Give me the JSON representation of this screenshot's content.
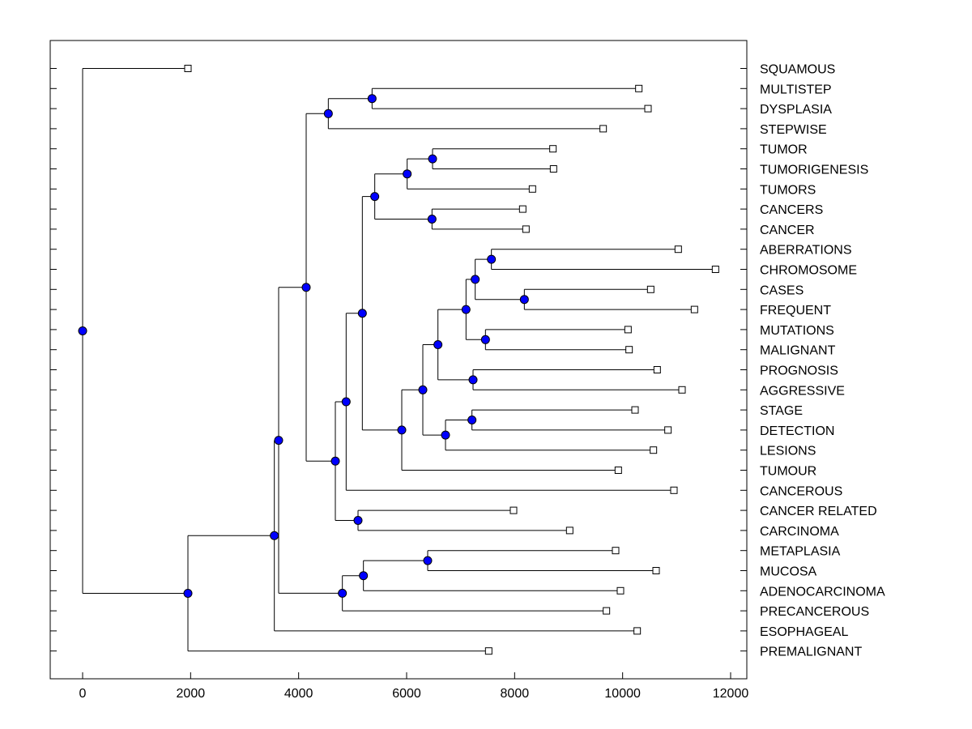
{
  "chart_data": {
    "type": "dendrogram",
    "title": "",
    "xlabel": "",
    "ylabel": "",
    "xlim": [
      -600,
      12300
    ],
    "x_ticks": [
      0,
      2000,
      4000,
      6000,
      8000,
      10000,
      12000
    ],
    "grid": false,
    "colors": {
      "node_fill": "#0000ff",
      "node_stroke": "#000000",
      "leaf_fill": "#ffffff",
      "line": "#000000"
    },
    "leaves": [
      {
        "label": "SQUAMOUS",
        "x": 1950
      },
      {
        "label": "MULTISTEP",
        "x": 10300
      },
      {
        "label": "DYSPLASIA",
        "x": 10470
      },
      {
        "label": "STEPWISE",
        "x": 9640
      },
      {
        "label": "TUMOR",
        "x": 8710
      },
      {
        "label": "TUMORIGENESIS",
        "x": 8720
      },
      {
        "label": "TUMORS",
        "x": 8330
      },
      {
        "label": "CANCERS",
        "x": 8150
      },
      {
        "label": "CANCER",
        "x": 8210
      },
      {
        "label": "ABERRATIONS",
        "x": 11030
      },
      {
        "label": "CHROMOSOME",
        "x": 11720
      },
      {
        "label": "CASES",
        "x": 10520
      },
      {
        "label": "FREQUENT",
        "x": 11330
      },
      {
        "label": "MUTATIONS",
        "x": 10100
      },
      {
        "label": "MALIGNANT",
        "x": 10120
      },
      {
        "label": "PROGNOSIS",
        "x": 10640
      },
      {
        "label": "AGGRESSIVE",
        "x": 11100
      },
      {
        "label": "STAGE",
        "x": 10230
      },
      {
        "label": "DETECTION",
        "x": 10840
      },
      {
        "label": "LESIONS",
        "x": 10570
      },
      {
        "label": "TUMOUR",
        "x": 9920
      },
      {
        "label": "CANCEROUS",
        "x": 10950
      },
      {
        "label": "CANCER RELATED",
        "x": 7980
      },
      {
        "label": "CARCINOMA",
        "x": 9020
      },
      {
        "label": "METAPLASIA",
        "x": 9870
      },
      {
        "label": "MUCOSA",
        "x": 10620
      },
      {
        "label": "ADENOCARCINOMA",
        "x": 9960
      },
      {
        "label": "PRECANCEROUS",
        "x": 9700
      },
      {
        "label": "ESOPHAGEAL",
        "x": 10270
      },
      {
        "label": "PREMALIGNANT",
        "x": 7520
      }
    ],
    "merges": [
      {
        "id": "n1",
        "x": 5360,
        "children": [
          "L1",
          "L2"
        ]
      },
      {
        "id": "n2",
        "x": 4550,
        "children": [
          "n1",
          "L3"
        ]
      },
      {
        "id": "n3",
        "x": 6480,
        "children": [
          "L4",
          "L5"
        ]
      },
      {
        "id": "n4",
        "x": 6010,
        "children": [
          "n3",
          "L6"
        ]
      },
      {
        "id": "n5",
        "x": 6470,
        "children": [
          "L7",
          "L8"
        ]
      },
      {
        "id": "n6",
        "x": 5410,
        "children": [
          "n4",
          "n5"
        ]
      },
      {
        "id": "n7",
        "x": 7570,
        "children": [
          "L9",
          "L10"
        ]
      },
      {
        "id": "n8",
        "x": 8180,
        "children": [
          "L11",
          "L12"
        ]
      },
      {
        "id": "n9",
        "x": 7270,
        "children": [
          "n7",
          "n8"
        ]
      },
      {
        "id": "n10",
        "x": 7460,
        "children": [
          "L13",
          "L14"
        ]
      },
      {
        "id": "n11",
        "x": 7100,
        "children": [
          "n9",
          "n10"
        ]
      },
      {
        "id": "n12",
        "x": 7230,
        "children": [
          "L15",
          "L16"
        ]
      },
      {
        "id": "n13",
        "x": 6580,
        "children": [
          "n11",
          "n12"
        ]
      },
      {
        "id": "n14",
        "x": 7210,
        "children": [
          "L17",
          "L18"
        ]
      },
      {
        "id": "n15",
        "x": 6720,
        "children": [
          "n14",
          "L19"
        ]
      },
      {
        "id": "n16",
        "x": 6300,
        "children": [
          "n13",
          "n15"
        ]
      },
      {
        "id": "n17",
        "x": 5910,
        "children": [
          "n16",
          "L20"
        ]
      },
      {
        "id": "n18",
        "x": 5180,
        "children": [
          "n6",
          "n17"
        ]
      },
      {
        "id": "n19",
        "x": 4880,
        "children": [
          "n18",
          "L21"
        ]
      },
      {
        "id": "n20",
        "x": 5100,
        "children": [
          "L22",
          "L23"
        ]
      },
      {
        "id": "n21",
        "x": 4680,
        "children": [
          "n19",
          "n20"
        ]
      },
      {
        "id": "n22",
        "x": 4140,
        "children": [
          "n2",
          "n21"
        ]
      },
      {
        "id": "n23",
        "x": 6390,
        "children": [
          "L24",
          "L25"
        ]
      },
      {
        "id": "n24",
        "x": 5200,
        "children": [
          "n23",
          "L26"
        ]
      },
      {
        "id": "n25",
        "x": 4810,
        "children": [
          "n24",
          "L27"
        ]
      },
      {
        "id": "n26",
        "x": 3630,
        "children": [
          "n22",
          "n25"
        ]
      },
      {
        "id": "n27",
        "x": 3550,
        "children": [
          "n26",
          "L28"
        ]
      },
      {
        "id": "n28",
        "x": 1950,
        "children": [
          "n27",
          "L29"
        ]
      },
      {
        "id": "n29",
        "x": 0,
        "children": [
          "L0",
          "n28"
        ]
      }
    ]
  }
}
